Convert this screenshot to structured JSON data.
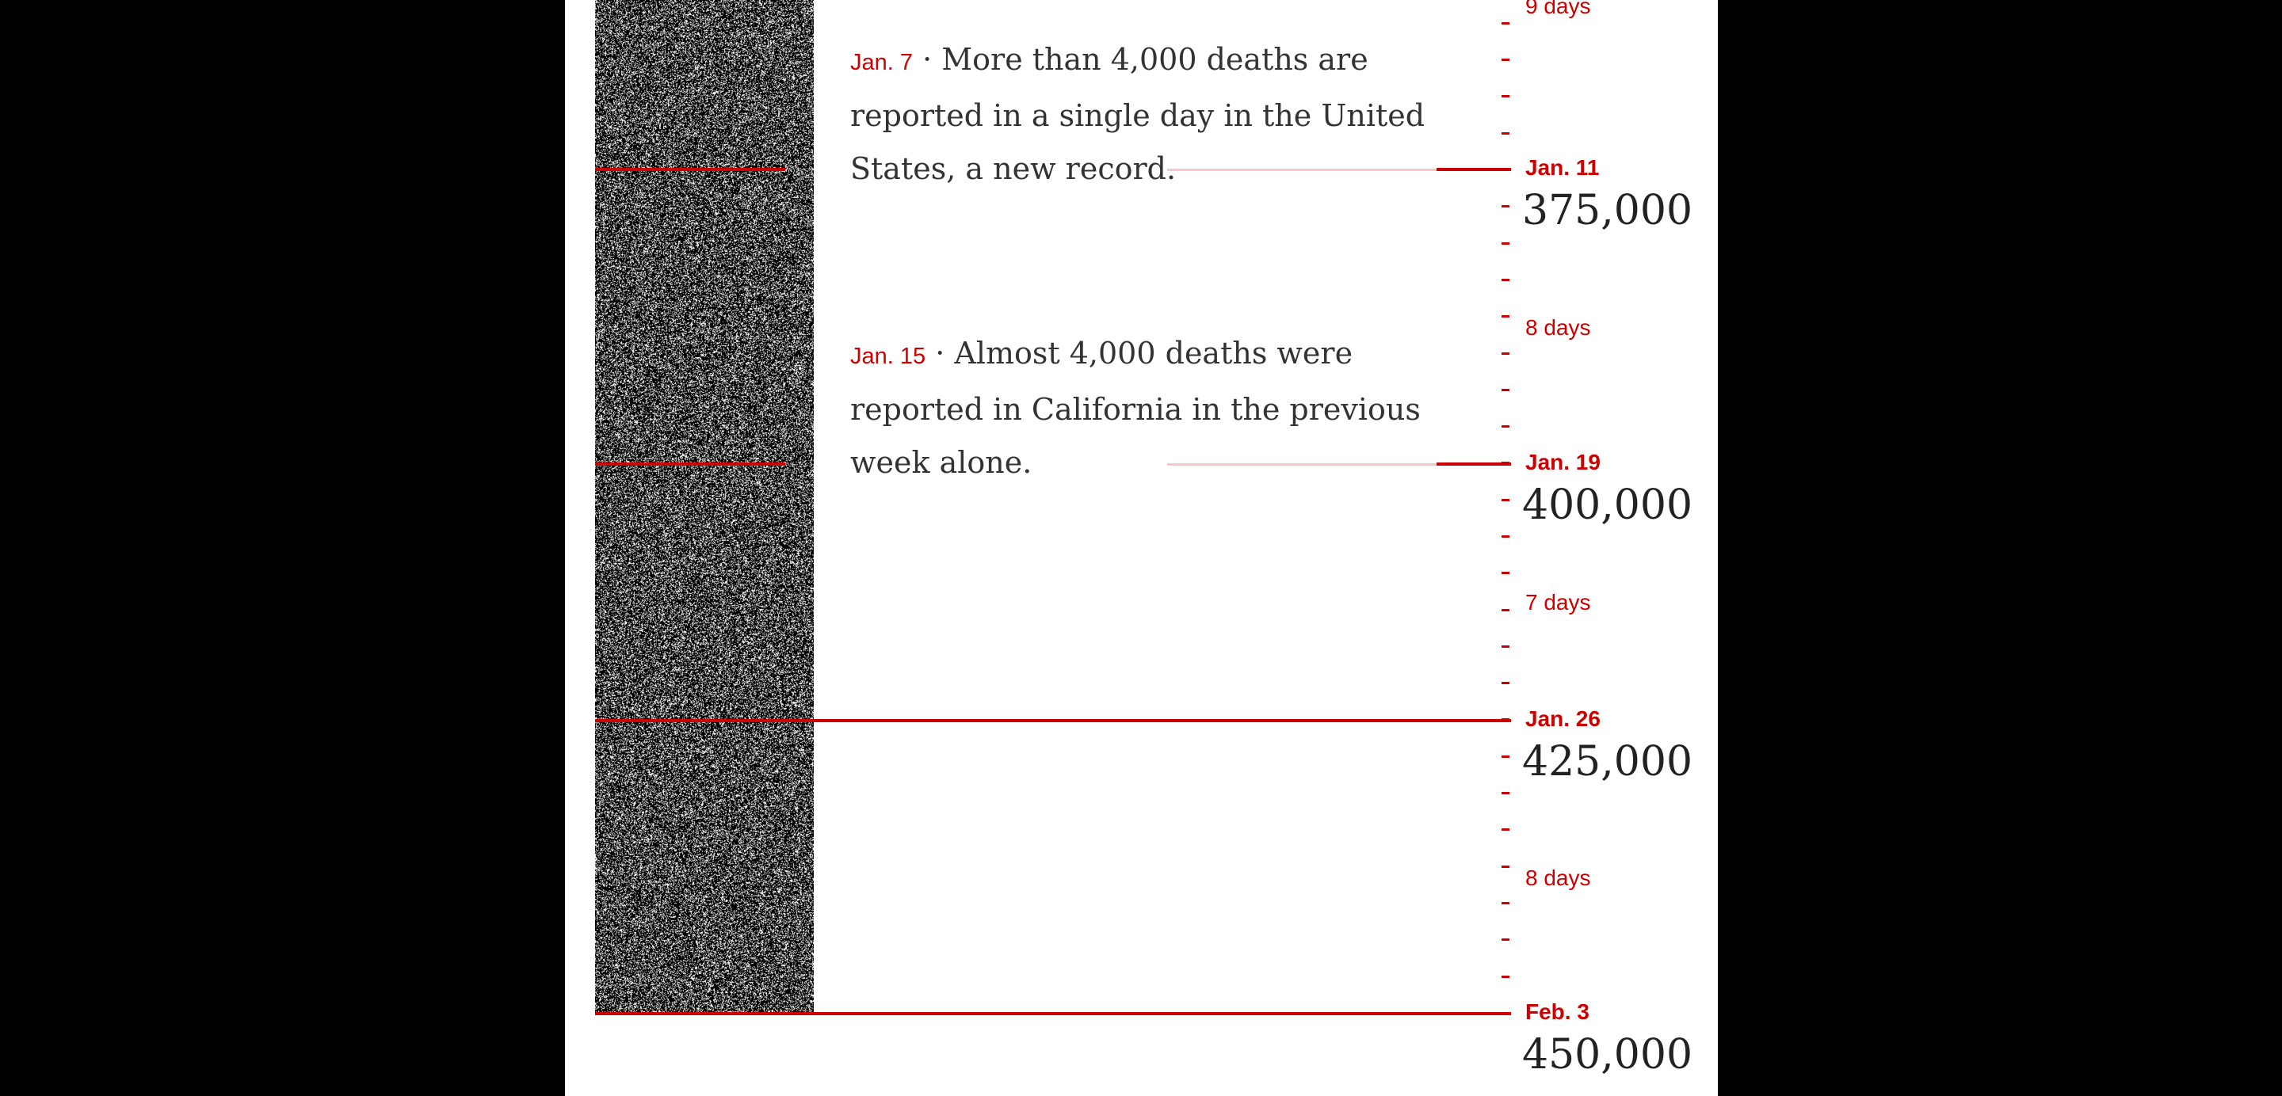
{
  "colors": {
    "accent": "#cc0000",
    "page_background": "#ffffff",
    "outer_background": "#000000",
    "text": "#333333"
  },
  "annotations": [
    {
      "date": "Jan. 7",
      "text": "· More than 4,000 deaths are reported in a single day in the United States, a new record."
    },
    {
      "date": "Jan. 15",
      "text": "· Almost 4,000 deaths were reported in California in the previous week alone."
    }
  ],
  "chart_data": {
    "type": "timeline",
    "title": "",
    "milestones": [
      {
        "date": "Jan. 11",
        "deaths": 375000,
        "label": "375,000"
      },
      {
        "date": "Jan. 19",
        "deaths": 400000,
        "label": "400,000"
      },
      {
        "date": "Jan. 26",
        "deaths": 425000,
        "label": "425,000"
      },
      {
        "date": "Feb. 3",
        "deaths": 450000,
        "label": "450,000"
      }
    ],
    "intervals": [
      {
        "label": "9 days",
        "partially_visible": true
      },
      {
        "label": "8 days",
        "from": "Jan. 11",
        "to": "Jan. 19"
      },
      {
        "label": "7 days",
        "from": "Jan. 19",
        "to": "Jan. 26"
      },
      {
        "label": "8 days",
        "from": "Jan. 26",
        "to": "Feb. 3"
      }
    ],
    "day_ticks": true,
    "noise_column": "each dot represents one death"
  }
}
